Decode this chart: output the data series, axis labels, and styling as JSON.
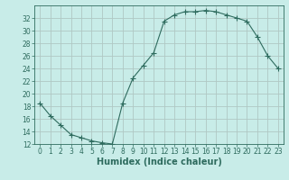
{
  "x": [
    0,
    1,
    2,
    3,
    4,
    5,
    6,
    7,
    8,
    9,
    10,
    11,
    12,
    13,
    14,
    15,
    16,
    17,
    18,
    19,
    20,
    21,
    22,
    23
  ],
  "y": [
    18.5,
    16.5,
    15.0,
    13.5,
    13.0,
    12.5,
    12.2,
    12.0,
    18.5,
    22.5,
    24.5,
    26.5,
    31.5,
    32.5,
    33.0,
    33.0,
    33.2,
    33.0,
    32.5,
    32.0,
    31.5,
    29.0,
    26.0,
    24.0
  ],
  "line_color": "#2e6b5e",
  "marker": "+",
  "marker_size": 4,
  "bg_color": "#c8ece8",
  "grid_color": "#b0c8c4",
  "xlabel": "Humidex (Indice chaleur)",
  "ylim": [
    12,
    34
  ],
  "xlim": [
    -0.5,
    23.5
  ],
  "yticks": [
    12,
    14,
    16,
    18,
    20,
    22,
    24,
    26,
    28,
    30,
    32
  ],
  "xticks": [
    0,
    1,
    2,
    3,
    4,
    5,
    6,
    7,
    8,
    9,
    10,
    11,
    12,
    13,
    14,
    15,
    16,
    17,
    18,
    19,
    20,
    21,
    22,
    23
  ],
  "tick_label_fontsize": 5.5,
  "xlabel_fontsize": 7,
  "axis_color": "#2e6b5e",
  "linewidth": 0.8,
  "marker_edge_width": 0.8
}
